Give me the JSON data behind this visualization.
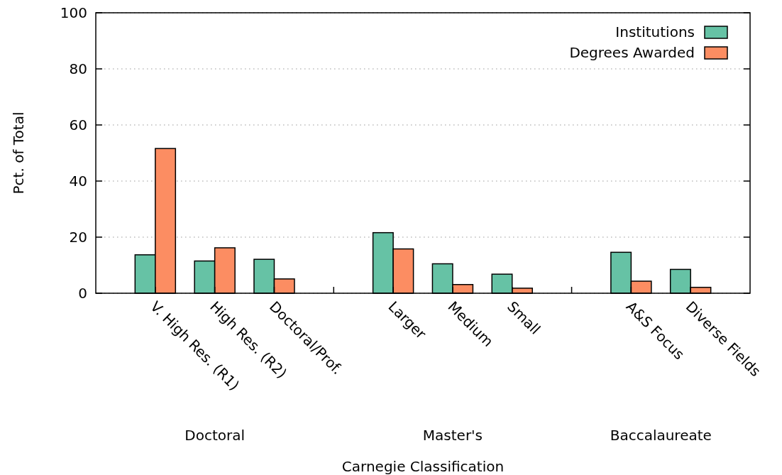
{
  "chart_data": {
    "type": "bar",
    "xlabel": "Carnegie Classification",
    "ylabel": "Pct. of Total",
    "categories": [
      "V. High Res. (R1)",
      "High Res. (R2)",
      "Doctoral/Prof.",
      null,
      "Larger",
      "Medium",
      "Small",
      null,
      "A&S Focus",
      "Diverse Fields"
    ],
    "series": [
      {
        "name": "Institutions",
        "color": "#66c2a5",
        "values": [
          13.7,
          11.5,
          12.1,
          null,
          21.6,
          10.5,
          6.8,
          null,
          14.6,
          8.5
        ]
      },
      {
        "name": "Degrees Awarded",
        "color": "#fc8d62",
        "values": [
          51.6,
          16.2,
          5.1,
          null,
          15.8,
          3.1,
          1.8,
          null,
          4.3,
          2.1
        ]
      }
    ],
    "annotations": [
      "Doctoral",
      "Master's",
      "Baccalaureate"
    ],
    "ylim": [
      0,
      100
    ],
    "yticks": [
      0,
      20,
      40,
      60,
      80,
      100
    ],
    "grid": "y",
    "legend": "top right"
  }
}
